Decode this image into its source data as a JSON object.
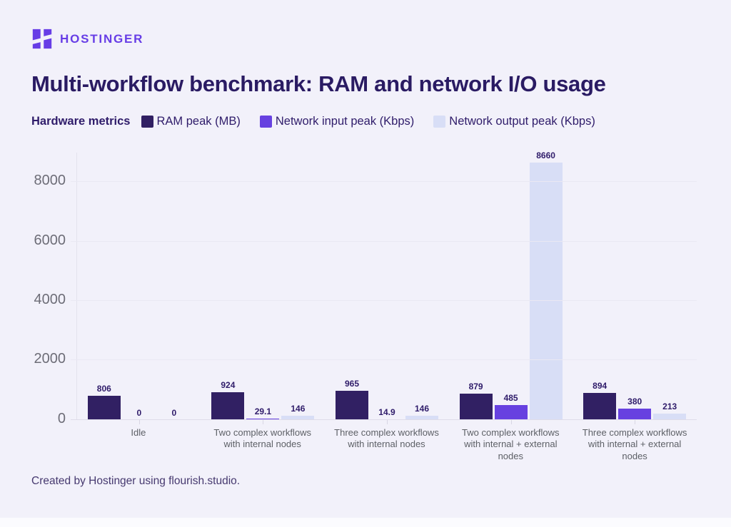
{
  "brand": {
    "wordmark": "HOSTINGER",
    "color": "#673DE6",
    "icon": "hostinger-h-mark"
  },
  "title": "Multi-workflow benchmark: RAM and network I/O usage",
  "legend_title": "Hardware metrics",
  "chart_data": {
    "type": "bar",
    "title": "Multi-workflow benchmark: RAM and network I/O usage",
    "categories": [
      "Idle",
      "Two complex workflows with internal nodes",
      "Three complex workflows with internal nodes",
      "Two complex workflows with internal + external nodes",
      "Three complex workflows with internal + external nodes"
    ],
    "series": [
      {
        "name": "RAM peak (MB)",
        "color": "#312063",
        "values": [
          806,
          924,
          965,
          879,
          894
        ]
      },
      {
        "name": "Network input peak (Kbps)",
        "color": "#6741E0",
        "values": [
          0,
          29.1,
          14.9,
          485,
          380
        ]
      },
      {
        "name": "Network output peak (Kbps)",
        "color": "#D8DEF6",
        "values": [
          0,
          146,
          146,
          8660,
          213
        ]
      }
    ],
    "yticks": [
      0,
      2000,
      4000,
      6000,
      8000
    ],
    "ylim": [
      0,
      9000
    ],
    "grid": true,
    "legend_position": "top",
    "value_labels": true
  },
  "footer": {
    "credit": "Created by Hostinger using flourish.studio."
  }
}
